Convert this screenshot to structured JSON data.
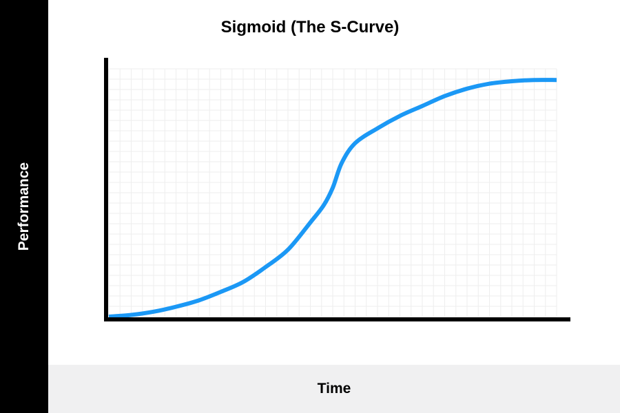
{
  "chart_data": {
    "type": "line",
    "title": "Sigmoid (The S-Curve)",
    "xlabel": "Time",
    "ylabel": "Performance",
    "grid": true,
    "legend": "none",
    "xlim": [
      0,
      1
    ],
    "ylim": [
      0,
      1
    ],
    "series": [
      {
        "x": [
          0.0,
          0.05,
          0.1,
          0.15,
          0.2,
          0.25,
          0.3,
          0.35,
          0.4,
          0.45,
          0.48,
          0.5,
          0.52,
          0.55,
          0.6,
          0.65,
          0.7,
          0.75,
          0.8,
          0.85,
          0.9,
          0.95,
          1.0
        ],
        "y": [
          0.0,
          0.007,
          0.02,
          0.04,
          0.065,
          0.1,
          0.14,
          0.2,
          0.27,
          0.38,
          0.45,
          0.52,
          0.62,
          0.7,
          0.76,
          0.81,
          0.85,
          0.89,
          0.92,
          0.94,
          0.95,
          0.955,
          0.955
        ]
      }
    ],
    "colors": {
      "line": "#1b98f5",
      "axis": "#000000",
      "grid": "#eeeeee"
    }
  }
}
